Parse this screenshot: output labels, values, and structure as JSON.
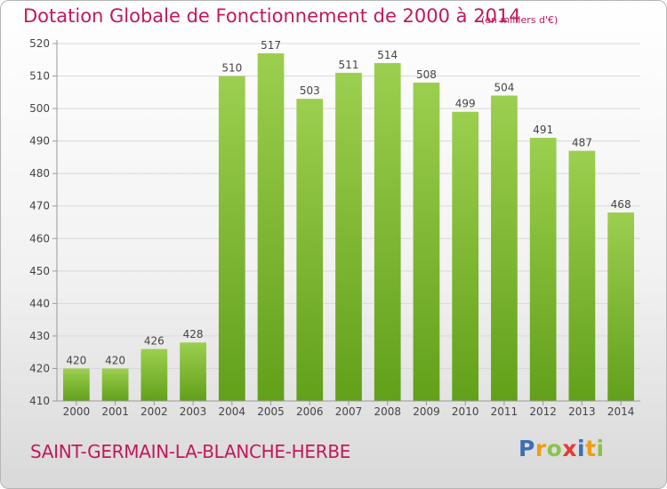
{
  "chart_data": {
    "type": "bar",
    "title": "Dotation Globale de Fonctionnement de 2000 à 2014",
    "subtitle": "(en milliers d'€)",
    "categories": [
      "2000",
      "2001",
      "2002",
      "2003",
      "2004",
      "2005",
      "2006",
      "2007",
      "2008",
      "2009",
      "2010",
      "2011",
      "2012",
      "2013",
      "2014"
    ],
    "values": [
      420,
      420,
      426,
      428,
      510,
      517,
      503,
      511,
      514,
      508,
      499,
      504,
      491,
      487,
      468
    ],
    "data_labels": [
      "420",
      "420",
      "426",
      "428",
      "510",
      "517",
      "503",
      "511",
      "514",
      "508",
      "499",
      "504",
      "491",
      "487",
      "468"
    ],
    "yticks": [
      410,
      420,
      430,
      440,
      450,
      460,
      470,
      480,
      490,
      500,
      510,
      520
    ],
    "ylim": [
      410,
      520
    ],
    "grid": true,
    "bar_color": "#8cc43c",
    "bar_color_dark": "#5e9a18"
  },
  "commune": "SAINT-GERMAIN-LA-BLANCHE-HERBE",
  "logo": {
    "letters": [
      "P",
      "r",
      "o",
      "x",
      "i",
      "t",
      "i"
    ],
    "colors": [
      "#3b6fb6",
      "#f39c12",
      "#8bc34a",
      "#e53935",
      "#3b6fb6",
      "#f39c12",
      "#8bc34a"
    ]
  },
  "colors": {
    "accent": "#c2185b",
    "axis": "#999999",
    "grid": "#d9d9d9"
  }
}
